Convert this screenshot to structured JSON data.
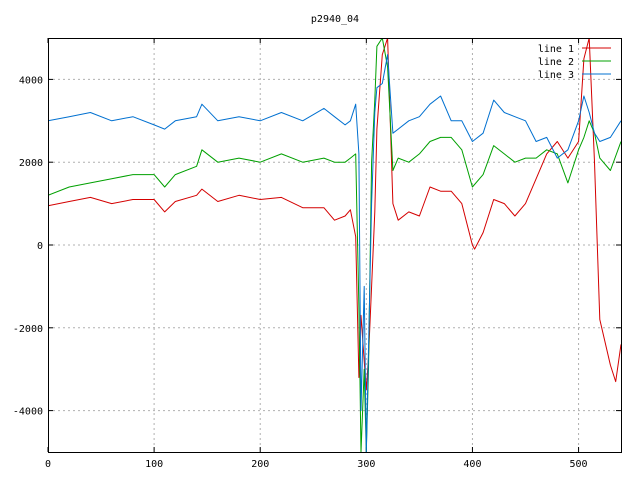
{
  "chart_data": {
    "type": "line",
    "title": "p2940_04",
    "xlabel": "",
    "ylabel": "",
    "xlim": [
      0,
      540
    ],
    "ylim": [
      -5000,
      5000
    ],
    "grid": true,
    "legend_placement": "top-right",
    "x_ticks": [
      0,
      100,
      200,
      300,
      400,
      500
    ],
    "y_ticks": [
      -4000,
      -2000,
      0,
      2000,
      4000
    ],
    "series": [
      {
        "name": "line 1",
        "color": "#d40000",
        "x": [
          0,
          20,
          40,
          60,
          80,
          100,
          110,
          120,
          140,
          145,
          160,
          180,
          200,
          220,
          240,
          260,
          270,
          280,
          285,
          290,
          293,
          295,
          298,
          300,
          302,
          305,
          308,
          310,
          315,
          320,
          325,
          330,
          340,
          350,
          360,
          370,
          380,
          390,
          400,
          402,
          410,
          420,
          430,
          440,
          450,
          460,
          470,
          480,
          490,
          500,
          505,
          510,
          515,
          520,
          530,
          535,
          540
        ],
        "y": [
          950,
          1050,
          1150,
          1000,
          1100,
          1100,
          800,
          1050,
          1200,
          1350,
          1050,
          1200,
          1100,
          1150,
          900,
          900,
          600,
          700,
          850,
          200,
          -3200,
          -1700,
          -2800,
          -3500,
          -2700,
          -1000,
          800,
          2800,
          4600,
          5000,
          1000,
          600,
          800,
          700,
          1400,
          1300,
          1300,
          1000,
          0,
          -100,
          300,
          1100,
          1000,
          700,
          1000,
          1600,
          2200,
          2500,
          2100,
          2500,
          4500,
          5000,
          2000,
          -1800,
          -2900,
          -3300,
          -2400
        ]
      },
      {
        "name": "line 2",
        "color": "#00a000",
        "x": [
          0,
          20,
          40,
          60,
          80,
          100,
          110,
          120,
          140,
          145,
          160,
          180,
          200,
          220,
          240,
          260,
          270,
          280,
          285,
          290,
          293,
          295,
          298,
          300,
          302,
          305,
          308,
          310,
          315,
          320,
          325,
          330,
          340,
          350,
          360,
          370,
          380,
          390,
          400,
          410,
          420,
          430,
          440,
          450,
          460,
          470,
          480,
          490,
          500,
          505,
          510,
          515,
          520,
          530,
          540
        ],
        "y": [
          1200,
          1400,
          1500,
          1600,
          1700,
          1700,
          1400,
          1700,
          1900,
          2300,
          2000,
          2100,
          2000,
          2200,
          2000,
          2100,
          2000,
          2000,
          2100,
          2200,
          -1500,
          -5000,
          -3000,
          -5000,
          -3000,
          2000,
          3500,
          4800,
          5000,
          4300,
          1800,
          2100,
          2000,
          2200,
          2500,
          2600,
          2600,
          2300,
          1400,
          1700,
          2400,
          2200,
          2000,
          2100,
          2100,
          2300,
          2200,
          1500,
          2300,
          2600,
          3000,
          2700,
          2100,
          1800,
          2500
        ]
      },
      {
        "name": "line 3",
        "color": "#0070d0",
        "x": [
          0,
          20,
          40,
          60,
          80,
          100,
          110,
          120,
          140,
          145,
          160,
          180,
          200,
          220,
          240,
          260,
          270,
          280,
          285,
          290,
          293,
          295,
          298,
          300,
          302,
          305,
          308,
          310,
          315,
          320,
          325,
          330,
          340,
          350,
          360,
          370,
          380,
          390,
          400,
          410,
          420,
          430,
          440,
          450,
          460,
          470,
          480,
          490,
          500,
          505,
          510,
          515,
          520,
          530,
          540
        ],
        "y": [
          3000,
          3100,
          3200,
          3000,
          3100,
          2900,
          2800,
          3000,
          3100,
          3400,
          3000,
          3100,
          3000,
          3200,
          3000,
          3300,
          3100,
          2900,
          3000,
          3400,
          2200,
          -4000,
          -1000,
          -5000,
          -2500,
          1000,
          3200,
          3800,
          3900,
          4600,
          2700,
          2800,
          3000,
          3100,
          3400,
          3600,
          3000,
          3000,
          2500,
          2700,
          3500,
          3200,
          3100,
          3000,
          2500,
          2600,
          2100,
          2300,
          3000,
          3600,
          3200,
          2700,
          2500,
          2600,
          3000
        ]
      }
    ]
  }
}
